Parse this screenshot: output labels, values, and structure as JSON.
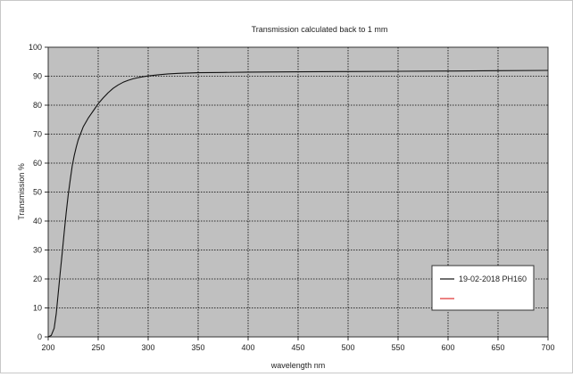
{
  "chart_data": {
    "type": "line",
    "title": "Transmission calculated back to 1 mm",
    "xlabel": "wavelength nm",
    "ylabel": "Transmission %",
    "xlim": [
      200,
      700
    ],
    "ylim": [
      0,
      100
    ],
    "xticks": [
      200,
      250,
      300,
      350,
      400,
      450,
      500,
      550,
      600,
      650,
      700
    ],
    "yticks": [
      0,
      10,
      20,
      30,
      40,
      50,
      60,
      70,
      80,
      90,
      100
    ],
    "grid": true,
    "plot_background": "#c0c0c0",
    "legend_position": "bottom-right",
    "series": [
      {
        "name": "19-02-2018 PH160",
        "color": "#111111",
        "x": [
          200,
          203,
          206,
          208,
          210,
          212,
          214,
          216,
          218,
          220,
          222,
          224,
          226,
          228,
          230,
          235,
          240,
          245,
          250,
          255,
          260,
          265,
          270,
          275,
          280,
          285,
          290,
          295,
          300,
          310,
          320,
          330,
          340,
          350,
          375,
          400,
          450,
          500,
          550,
          600,
          650,
          700
        ],
        "y": [
          0,
          0.5,
          3,
          8,
          15,
          22,
          29,
          36,
          43,
          49,
          54,
          59,
          62.5,
          65.5,
          68,
          72.5,
          75.5,
          78,
          80.5,
          82.5,
          84.3,
          85.8,
          87,
          87.9,
          88.6,
          89.1,
          89.5,
          89.8,
          90.1,
          90.5,
          90.8,
          91,
          91.1,
          91.2,
          91.3,
          91.4,
          91.5,
          91.6,
          91.7,
          91.8,
          91.9,
          92
        ]
      },
      {
        "name": "",
        "color": "#e03030",
        "x": [],
        "y": []
      }
    ]
  }
}
